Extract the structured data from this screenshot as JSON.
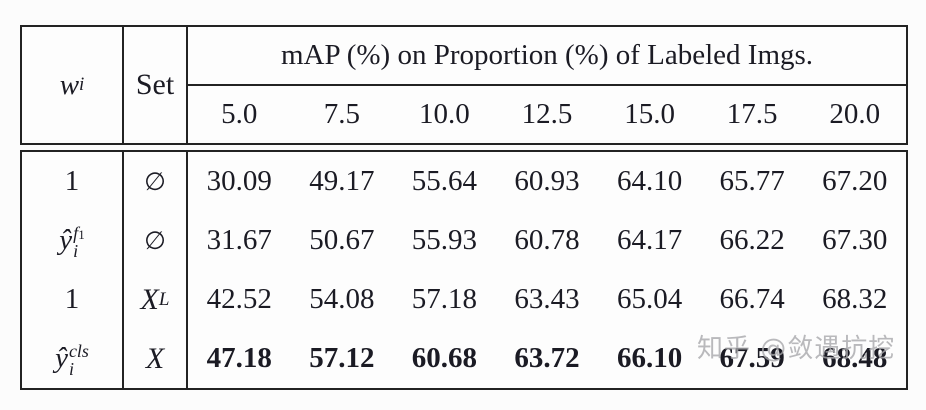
{
  "colors": {
    "text": "#1b1b24",
    "border": "#232323",
    "background": "#fcfcfc",
    "watermark_gray": "#a9a9ac"
  },
  "table": {
    "header": {
      "weight_col": {
        "base": "w",
        "sub": "i"
      },
      "set_col": "Set",
      "span_title": "mAP (%) on Proportion (%) of Labeled Imgs.",
      "proportions": [
        "5.0",
        "7.5",
        "10.0",
        "12.5",
        "15.0",
        "17.5",
        "20.0"
      ]
    },
    "rows": [
      {
        "weight": {
          "plain": "1"
        },
        "set": {
          "empty": "∅"
        },
        "values": [
          "30.09",
          "49.17",
          "55.64",
          "60.93",
          "64.10",
          "65.77",
          "67.20"
        ]
      },
      {
        "weight": {
          "base": "ŷ",
          "sub": "i",
          "sup": "f",
          "sup_sub": "1"
        },
        "set": {
          "empty": "∅"
        },
        "values": [
          "31.67",
          "50.67",
          "55.93",
          "60.78",
          "64.17",
          "66.22",
          "67.30"
        ]
      },
      {
        "weight": {
          "plain": "1"
        },
        "set": {
          "cal_x": "X",
          "cal_x_sub": "L"
        },
        "values": [
          "42.52",
          "54.08",
          "57.18",
          "63.43",
          "65.04",
          "66.74",
          "68.32"
        ]
      },
      {
        "weight": {
          "base": "ŷ",
          "sub": "i",
          "sup": "cls"
        },
        "set": {
          "cal_x": "X"
        },
        "values": [
          "47.18",
          "57.12",
          "60.68",
          "63.72",
          "66.10",
          "67.59",
          "68.48"
        ]
      }
    ]
  },
  "watermark": {
    "text": "知乎 @敛遇抗挖"
  }
}
